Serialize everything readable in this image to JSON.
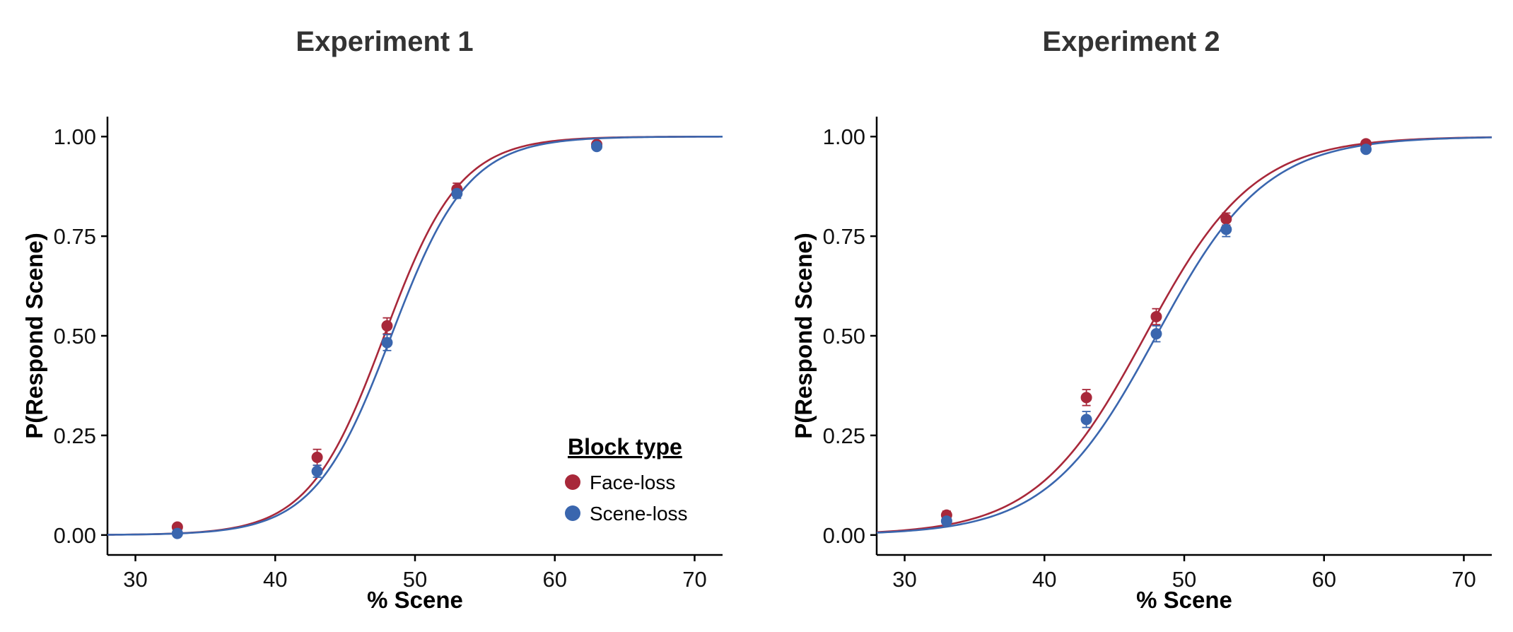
{
  "colors": {
    "face_loss": "#A8283A",
    "scene_loss": "#3A66AE",
    "axis": "#000000",
    "title": "#333333"
  },
  "chart_data": [
    {
      "type": "scatter",
      "title": "Experiment 1",
      "xlabel": "% Scene",
      "ylabel": "P(Respond Scene)",
      "xlim": [
        28,
        72
      ],
      "ylim": [
        -0.05,
        1.05
      ],
      "xticks": [
        30,
        40,
        50,
        60,
        70
      ],
      "yticks": [
        0,
        0.25,
        0.5,
        0.75,
        1
      ],
      "xtick_labels": [
        "30",
        "40",
        "50",
        "60",
        "70"
      ],
      "ytick_labels": [
        "0.00",
        "0.25",
        "0.50",
        "0.75",
        "1.00"
      ],
      "grid": false,
      "legend": {
        "title": "Block type",
        "placement": "bottom-right",
        "entries": [
          "Face-loss",
          "Scene-loss"
        ]
      },
      "series": [
        {
          "name": "Face-loss",
          "color": "#A8283A",
          "x": [
            33,
            43,
            48,
            53,
            63
          ],
          "y": [
            0.02,
            0.195,
            0.525,
            0.868,
            0.98
          ],
          "error": [
            0.006,
            0.02,
            0.02,
            0.015,
            0.005
          ],
          "fit": {
            "mu": 47.8,
            "s": 2.7
          }
        },
        {
          "name": "Scene-loss",
          "color": "#3A66AE",
          "x": [
            33,
            43,
            48,
            53,
            63
          ],
          "y": [
            0.004,
            0.16,
            0.483,
            0.857,
            0.975
          ],
          "error": [
            0.003,
            0.015,
            0.02,
            0.012,
            0.005
          ],
          "fit": {
            "mu": 48.3,
            "s": 2.75
          }
        }
      ]
    },
    {
      "type": "scatter",
      "title": "Experiment 2",
      "xlabel": "% Scene",
      "ylabel": "P(Respond Scene)",
      "xlim": [
        28,
        72
      ],
      "ylim": [
        -0.05,
        1.05
      ],
      "xticks": [
        30,
        40,
        50,
        60,
        70
      ],
      "yticks": [
        0,
        0.25,
        0.5,
        0.75,
        1
      ],
      "xtick_labels": [
        "30",
        "40",
        "50",
        "60",
        "70"
      ],
      "ytick_labels": [
        "0.00",
        "0.25",
        "0.50",
        "0.75",
        "1.00"
      ],
      "grid": false,
      "series": [
        {
          "name": "Face-loss",
          "color": "#A8283A",
          "x": [
            33,
            43,
            48,
            53,
            63
          ],
          "y": [
            0.05,
            0.345,
            0.548,
            0.793,
            0.982
          ],
          "error": [
            0.01,
            0.02,
            0.02,
            0.015,
            0.005
          ],
          "fit": {
            "mu": 47.2,
            "s": 3.9
          }
        },
        {
          "name": "Scene-loss",
          "color": "#3A66AE",
          "x": [
            33,
            43,
            48,
            53,
            63
          ],
          "y": [
            0.035,
            0.29,
            0.505,
            0.767,
            0.968
          ],
          "error": [
            0.01,
            0.02,
            0.02,
            0.018,
            0.005
          ],
          "fit": {
            "mu": 48.0,
            "s": 3.9
          }
        }
      ]
    }
  ]
}
